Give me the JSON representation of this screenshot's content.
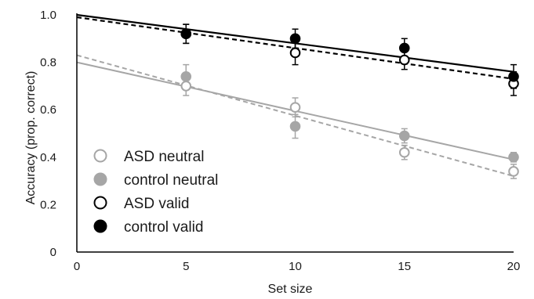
{
  "chart_data": {
    "type": "scatter",
    "xlabel": "Set size",
    "ylabel": "Accuracy (prop. correct)",
    "xlim": [
      0,
      20
    ],
    "ylim": [
      0,
      1.0
    ],
    "x_ticks": [
      0,
      5,
      10,
      15,
      20
    ],
    "x_tick_labels": [
      "0",
      "5",
      "10",
      "15",
      "20"
    ],
    "y_ticks": [
      0,
      0.2,
      0.4,
      0.6,
      0.8,
      1.0
    ],
    "y_tick_labels": [
      "0",
      "0.2",
      "0.4",
      "0.6",
      "0.8",
      "1.0"
    ],
    "grid": false,
    "legend_position": "lower-left",
    "series": [
      {
        "name": "ASD neutral",
        "marker": "open",
        "color": "#a6a6a6",
        "line_style": "dashed",
        "x": [
          5,
          10,
          15,
          20
        ],
        "y": [
          0.7,
          0.61,
          0.42,
          0.34
        ],
        "error": [
          0.04,
          0.04,
          0.03,
          0.03
        ],
        "fit": {
          "intercept": 0.83,
          "end": 0.32
        }
      },
      {
        "name": "control neutral",
        "marker": "filled",
        "color": "#a6a6a6",
        "line_style": "solid",
        "x": [
          5,
          10,
          15,
          20
        ],
        "y": [
          0.74,
          0.53,
          0.49,
          0.4
        ],
        "error": [
          0.05,
          0.05,
          0.03,
          0.02
        ],
        "fit": {
          "intercept": 0.8,
          "end": 0.39
        }
      },
      {
        "name": "ASD valid",
        "marker": "open",
        "color": "#000000",
        "line_style": "dashed",
        "x": [
          5,
          10,
          15,
          20
        ],
        "y": [
          0.92,
          0.84,
          0.81,
          0.71
        ],
        "error": [
          0.04,
          0.05,
          0.04,
          0.05
        ],
        "fit": {
          "intercept": 0.99,
          "end": 0.73
        }
      },
      {
        "name": "control valid",
        "marker": "filled",
        "color": "#000000",
        "line_style": "solid",
        "x": [
          5,
          10,
          15,
          20
        ],
        "y": [
          0.92,
          0.9,
          0.86,
          0.74
        ],
        "error": [
          0.04,
          0.04,
          0.04,
          0.05
        ],
        "fit": {
          "intercept": 1.0,
          "end": 0.76
        }
      }
    ]
  }
}
